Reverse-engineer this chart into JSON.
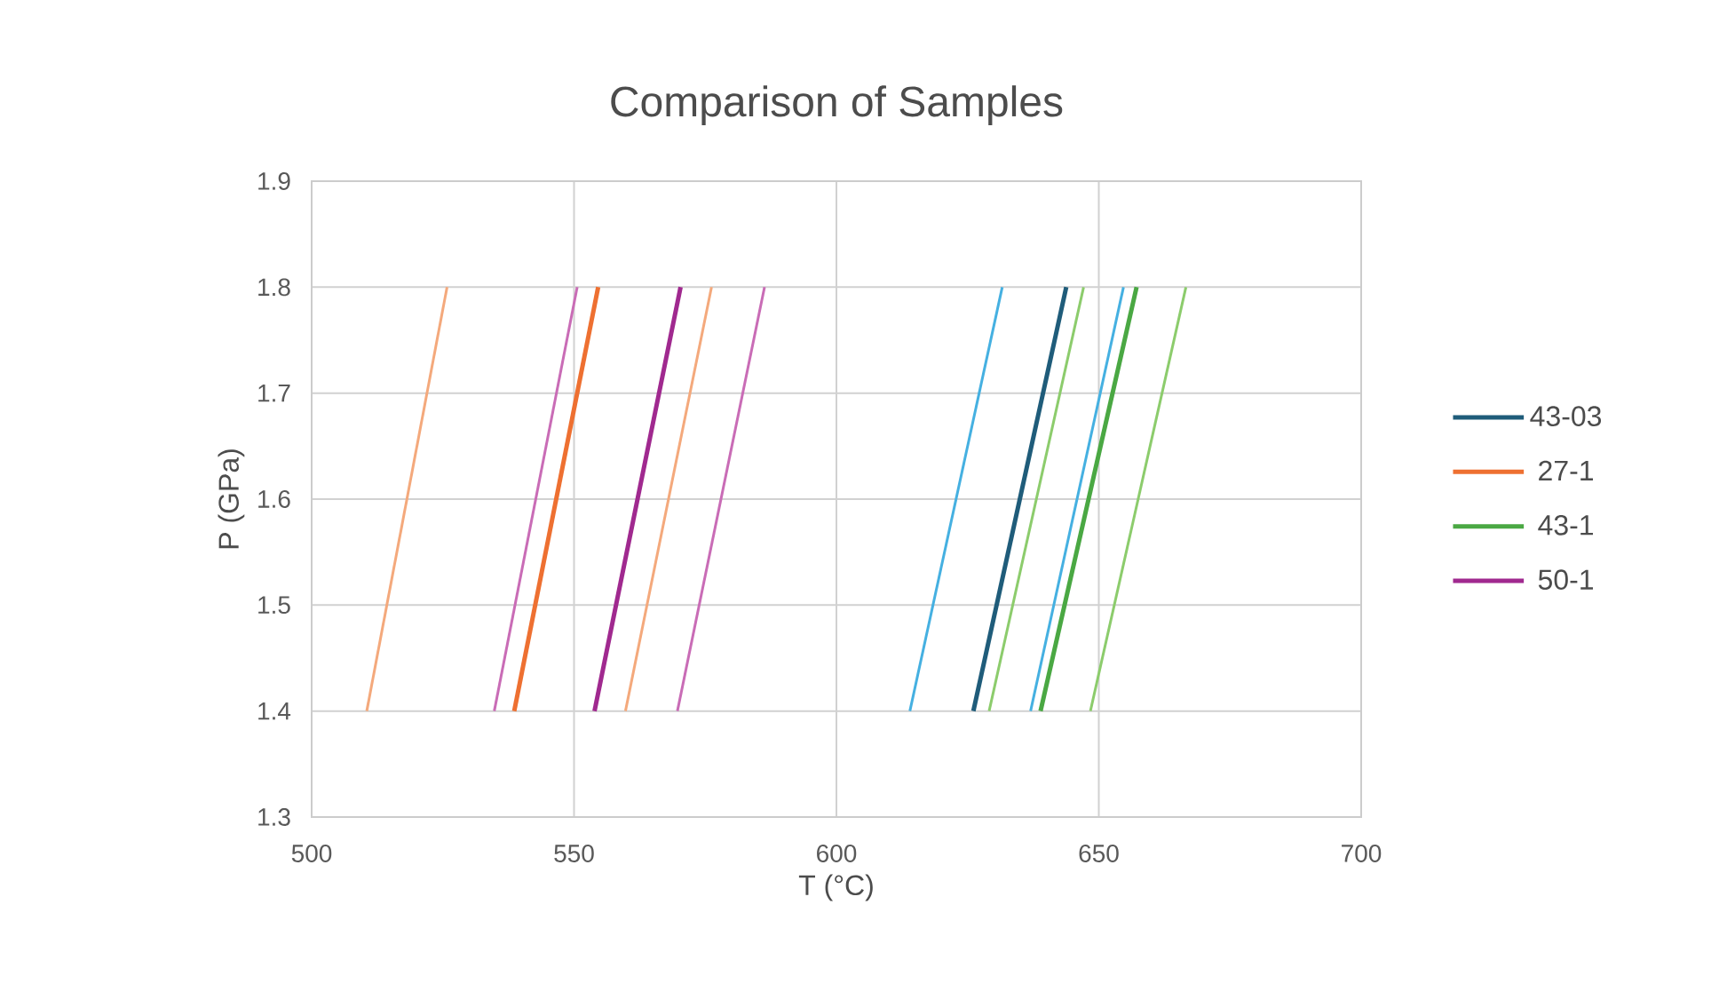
{
  "chart_data": {
    "type": "line",
    "title": "Comparison of Samples",
    "xlabel": "T (°C)",
    "ylabel": "P (GPa)",
    "xlim": [
      500,
      700
    ],
    "xticks": [
      500,
      550,
      600,
      650,
      700
    ],
    "ylim": [
      1.3,
      1.9
    ],
    "yticks": [
      1.3,
      1.4,
      1.5,
      1.6,
      1.7,
      1.8,
      1.9
    ],
    "grid": true,
    "legend": "right",
    "marker": "none",
    "series": [
      {
        "color": "#f4a97c",
        "x": [
          510.5,
          525.8
        ],
        "values": [
          1.4,
          1.8
        ]
      },
      {
        "color": "#c96cb6",
        "x": [
          534.8,
          550.6
        ],
        "values": [
          1.4,
          1.8
        ]
      },
      {
        "color": "#c96cb6",
        "x": [
          569.7,
          586.3
        ],
        "values": [
          1.4,
          1.8
        ]
      },
      {
        "color": "#f4a97c",
        "x": [
          559.8,
          576.2
        ],
        "values": [
          1.4,
          1.8
        ]
      },
      {
        "color": "#45b0e1",
        "x": [
          614.0,
          631.6
        ],
        "values": [
          1.4,
          1.8
        ]
      },
      {
        "color": "#8ccc6c",
        "x": [
          629.1,
          647.1
        ],
        "values": [
          1.4,
          1.8
        ]
      },
      {
        "color": "#45b0e1",
        "x": [
          637.0,
          654.7
        ],
        "values": [
          1.4,
          1.8
        ]
      },
      {
        "color": "#8ccc6c",
        "x": [
          648.4,
          666.6
        ],
        "values": [
          1.4,
          1.8
        ]
      },
      {
        "name": "43-03",
        "color": "#1f5c7a",
        "x": [
          626.1,
          643.8
        ],
        "values": [
          1.4,
          1.8
        ]
      },
      {
        "name": "27-1",
        "color": "#ee7031",
        "x": [
          538.6,
          554.6
        ],
        "values": [
          1.4,
          1.8
        ]
      },
      {
        "name": "43-1",
        "color": "#4aa843",
        "x": [
          638.9,
          657.2
        ],
        "values": [
          1.4,
          1.8
        ]
      },
      {
        "name": "50-1",
        "color": "#a0298f",
        "x": [
          553.9,
          570.3
        ],
        "values": [
          1.4,
          1.8
        ]
      }
    ]
  }
}
